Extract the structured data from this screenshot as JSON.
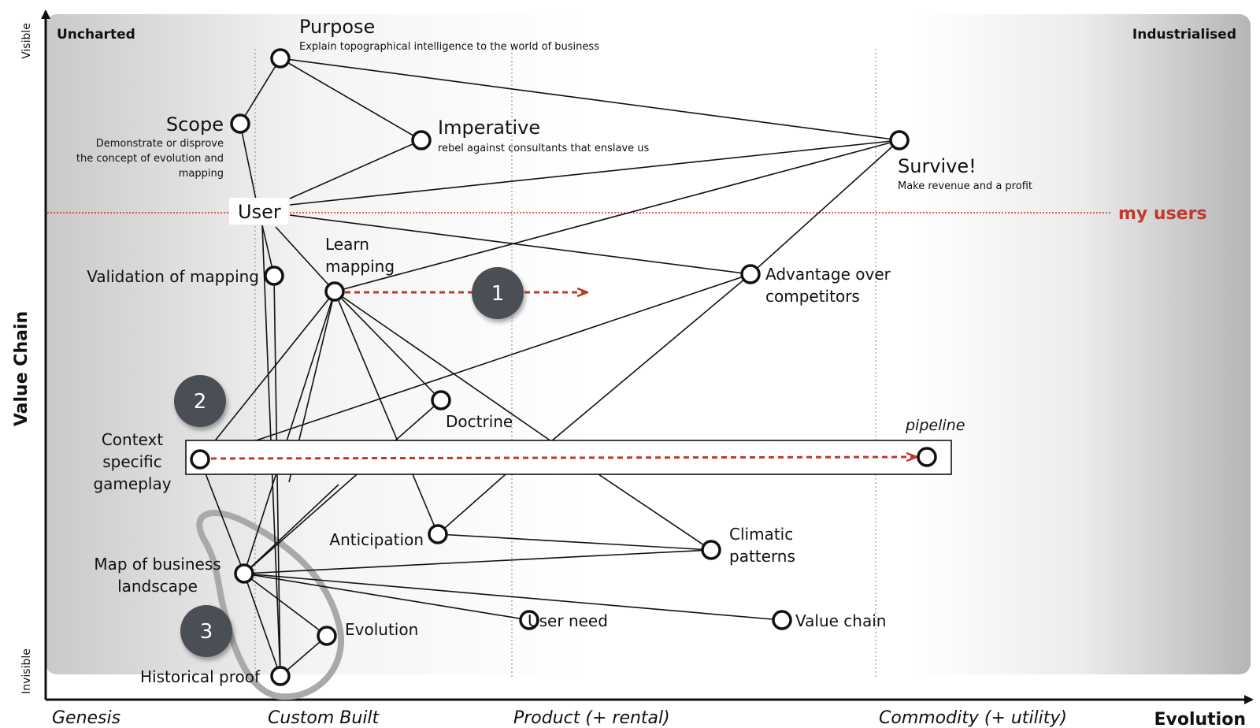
{
  "axes": {
    "y_label": "Value Chain",
    "y_top": "Visible",
    "y_bottom": "Invisible",
    "x_label": "Evolution",
    "stages": [
      "Genesis",
      "Custom Built",
      "Product (+ rental)",
      "Commodity (+ utility)"
    ],
    "corner_left": "Uncharted",
    "corner_right": "Industrialised"
  },
  "users_line_label": "my users",
  "pipeline_label": "pipeline",
  "badges": [
    "1",
    "2",
    "3"
  ],
  "nodes": {
    "purpose": {
      "title": "Purpose",
      "desc": "Explain topographical intelligence to the world of business"
    },
    "scope": {
      "title": "Scope",
      "desc1": "Demonstrate or disprove",
      "desc2": "the concept of evolution and",
      "desc3": "mapping"
    },
    "imperative": {
      "title": "Imperative",
      "desc": "rebel against consultants that enslave us"
    },
    "survive": {
      "title": "Survive!",
      "desc": "Make revenue and a profit"
    },
    "user": {
      "title": "User"
    },
    "learn_mapping": {
      "line1": "Learn",
      "line2": "mapping"
    },
    "validation": {
      "title": "Validation of mapping"
    },
    "advantage": {
      "line1": "Advantage over",
      "line2": "competitors"
    },
    "doctrine": {
      "title": "Doctrine"
    },
    "context": {
      "line1": "Context",
      "line2": "specific",
      "line3": "gameplay"
    },
    "anticipation": {
      "title": "Anticipation"
    },
    "climatic": {
      "line1": "Climatic",
      "line2": "patterns"
    },
    "map_business": {
      "line1": "Map of business",
      "line2": "landscape"
    },
    "user_need": {
      "title": "User need"
    },
    "value_chain": {
      "title": "Value chain"
    },
    "evolution": {
      "title": "Evolution"
    },
    "historical": {
      "title": "Historical proof"
    }
  },
  "colors": {
    "accent_red": "#c0392b",
    "node_stroke": "#111111",
    "badge_fill": "#4a4f55"
  }
}
